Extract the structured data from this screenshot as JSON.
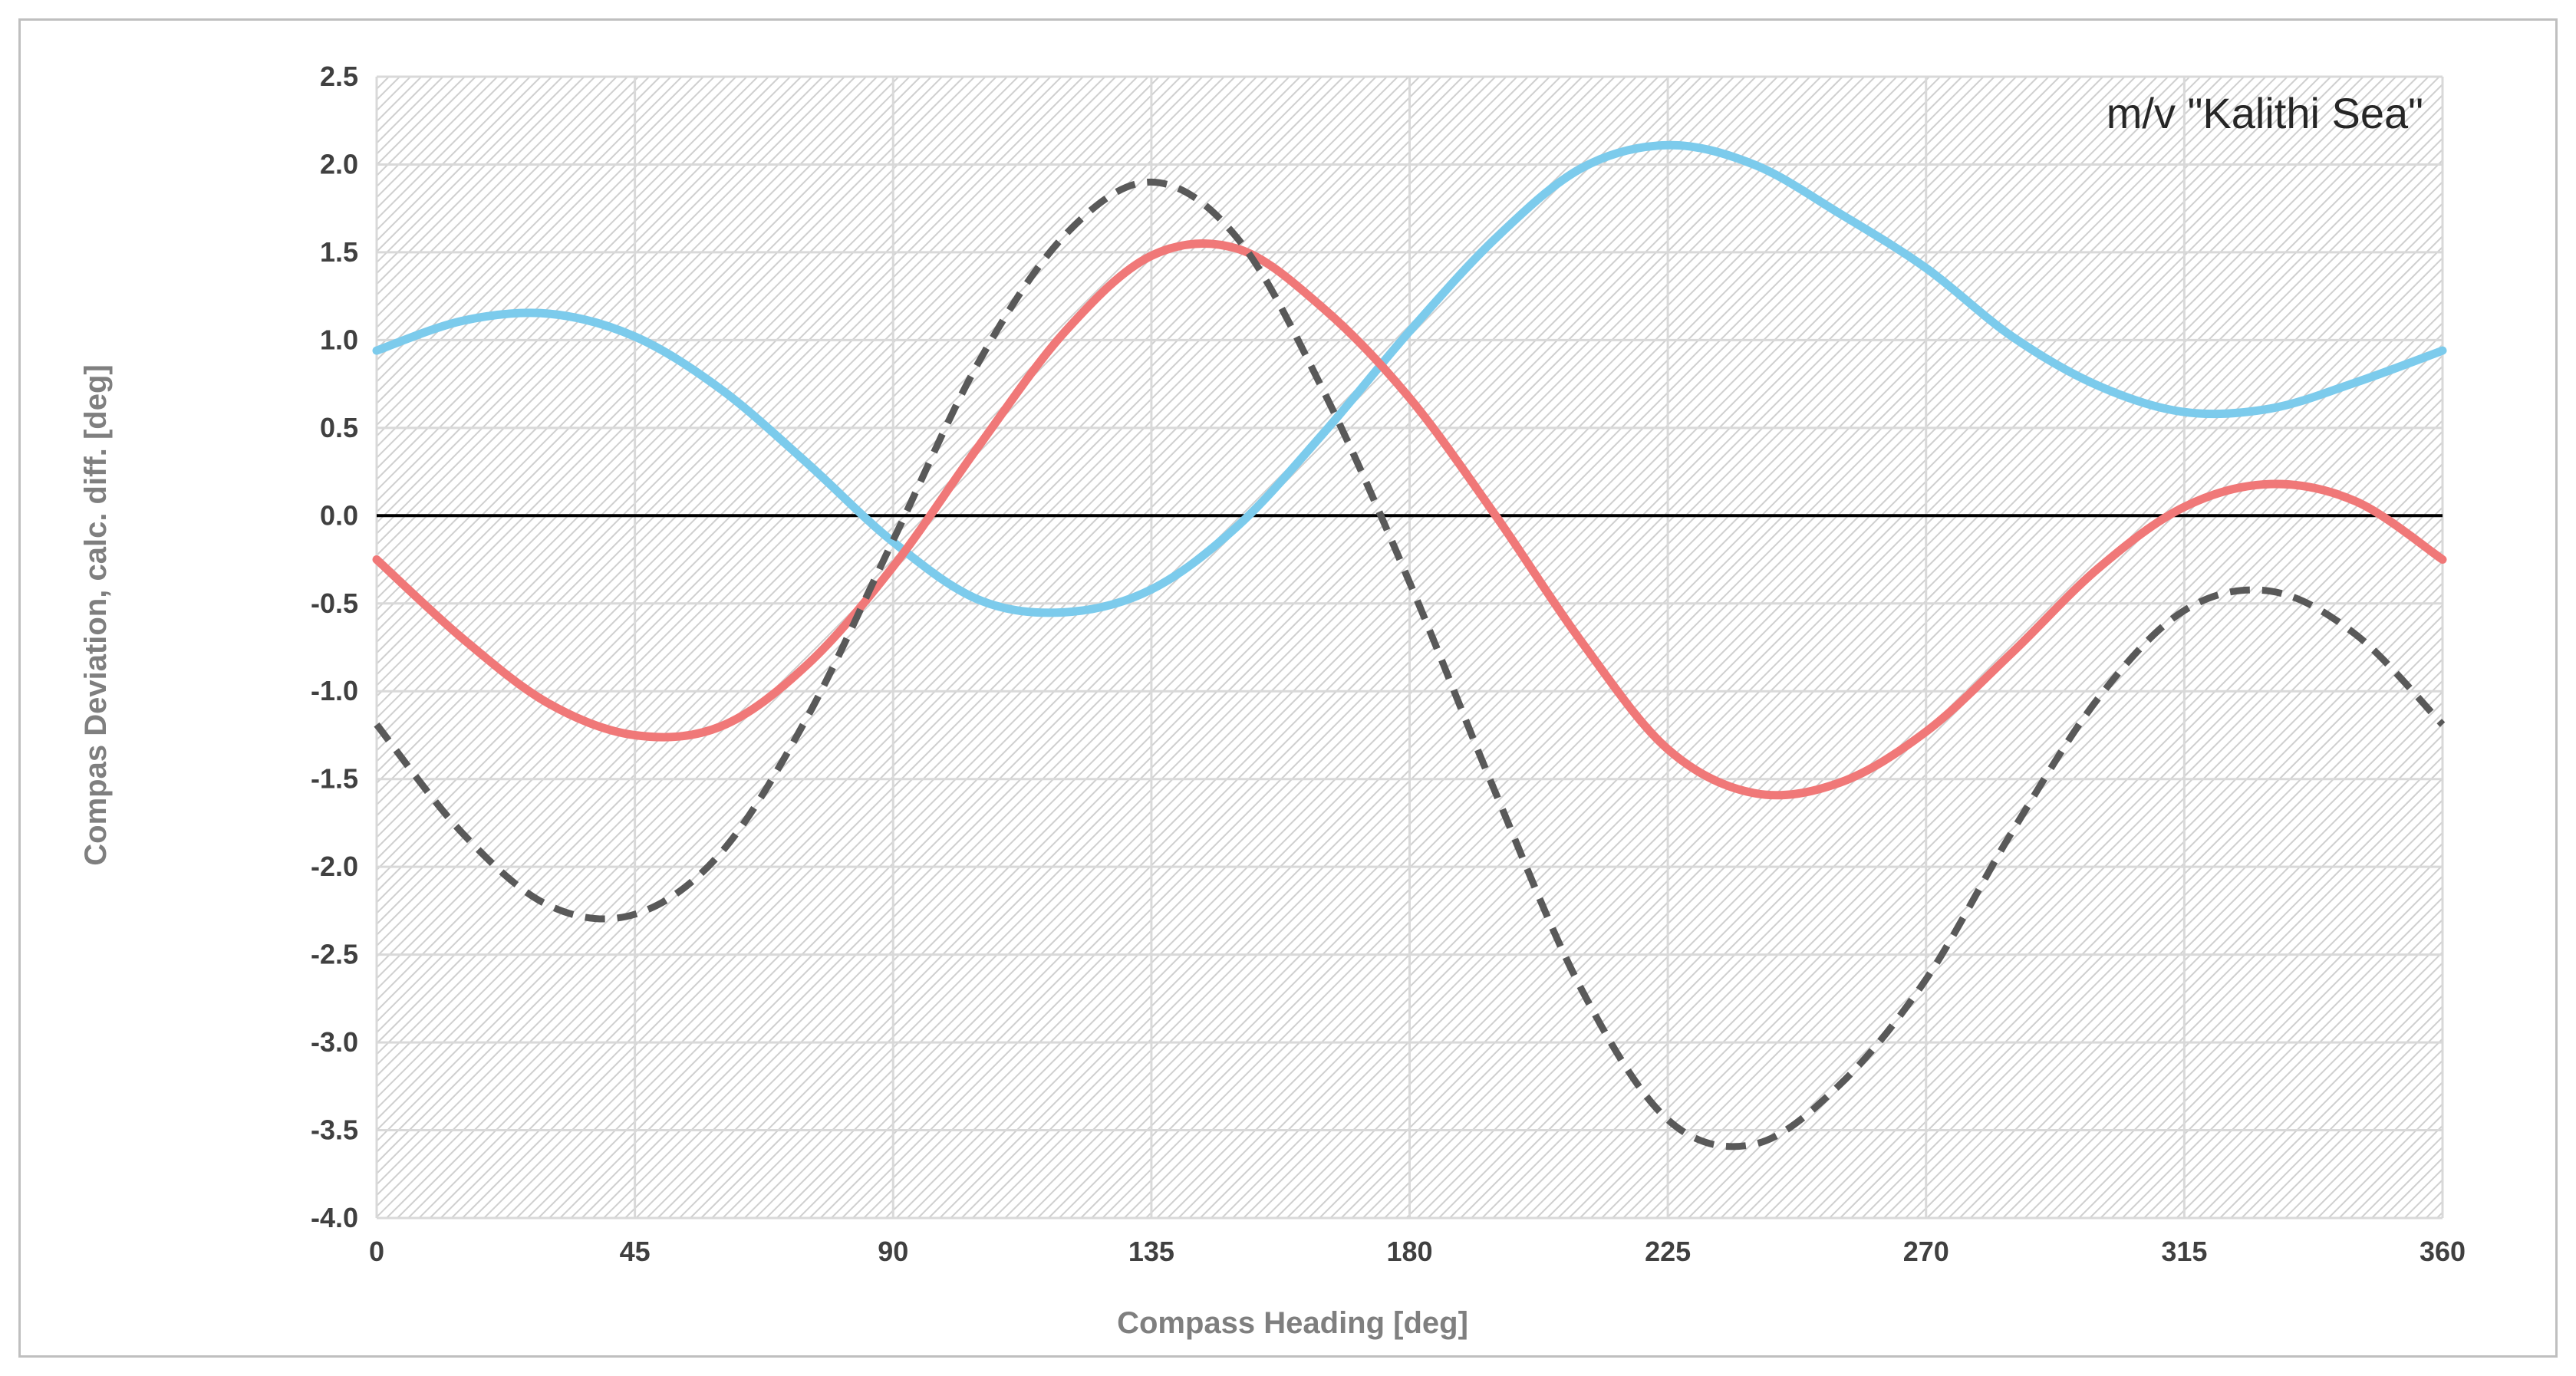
{
  "chart_data": {
    "type": "line",
    "title": "",
    "annotation": "m/v \"Kalithi Sea\"",
    "xlabel": "Compass Heading [deg]",
    "ylabel": "Compas Deviation, calc. diff. [deg]",
    "xlim": [
      0,
      360
    ],
    "ylim": [
      -4.0,
      2.5
    ],
    "x_ticks": [
      0,
      45,
      90,
      135,
      180,
      225,
      270,
      315,
      360
    ],
    "y_ticks": [
      2.5,
      2.0,
      1.5,
      1.0,
      0.5,
      0.0,
      -0.5,
      -1.0,
      -1.5,
      -2.0,
      -2.5,
      -3.0,
      -3.5,
      -4.0
    ],
    "x_tick_labels": [
      "0",
      "45",
      "90",
      "135",
      "180",
      "225",
      "270",
      "315",
      "360"
    ],
    "y_tick_labels": [
      "2.5",
      "2.0",
      "1.5",
      "1.0",
      "0.5",
      "0.0",
      "-0.5",
      "-1.0",
      "-1.5",
      "-2.0",
      "-2.5",
      "-3.0",
      "-3.5",
      "-4.0"
    ],
    "grid": true,
    "legend": "none",
    "zero_line": true,
    "x": [
      0,
      15,
      30,
      45,
      60,
      75,
      90,
      105,
      120,
      135,
      150,
      165,
      180,
      195,
      210,
      225,
      240,
      255,
      270,
      285,
      300,
      315,
      330,
      345,
      360
    ],
    "series": [
      {
        "color": "#7ccbec",
        "style": "solid",
        "values": [
          0.94,
          1.11,
          1.15,
          1.02,
          0.72,
          0.3,
          -0.15,
          -0.48,
          -0.55,
          -0.42,
          -0.06,
          0.47,
          1.05,
          1.58,
          1.98,
          2.11,
          2.0,
          1.72,
          1.41,
          1.02,
          0.74,
          0.59,
          0.61,
          0.76,
          0.94
        ]
      },
      {
        "color": "#f07878",
        "style": "solid",
        "values": [
          -0.25,
          -0.7,
          -1.07,
          -1.25,
          -1.2,
          -0.85,
          -0.29,
          0.4,
          1.05,
          1.48,
          1.52,
          1.18,
          0.67,
          0.0,
          -0.72,
          -1.33,
          -1.58,
          -1.52,
          -1.23,
          -0.78,
          -0.3,
          0.05,
          0.18,
          0.08,
          -0.25
        ]
      },
      {
        "color": "#595959",
        "style": "dashed",
        "values": [
          -1.19,
          -1.81,
          -2.22,
          -2.27,
          -1.92,
          -1.15,
          -0.14,
          0.88,
          1.6,
          1.9,
          1.58,
          0.71,
          -0.38,
          -1.58,
          -2.7,
          -3.44,
          -3.58,
          -3.24,
          -2.64,
          -1.8,
          -1.04,
          -0.54,
          -0.43,
          -0.68,
          -1.19
        ]
      }
    ]
  }
}
